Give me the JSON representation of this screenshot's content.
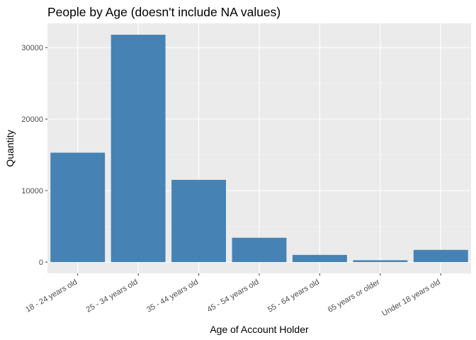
{
  "chart_data": {
    "type": "bar",
    "title": "People by Age (doesn't include NA values)",
    "xlabel": "Age of Account Holder",
    "ylabel": "Quantity",
    "categories": [
      "18 - 24 years old",
      "25 - 34 years old",
      "35 - 44 years old",
      "45 - 54 years old",
      "55 - 64 years old",
      "65 years or older",
      "Under 18 years old"
    ],
    "values": [
      15300,
      31800,
      11500,
      3400,
      1000,
      250,
      1700
    ],
    "ylim": [
      -1590,
      33390
    ],
    "yticks": [
      0,
      10000,
      20000,
      30000
    ],
    "ytick_labels": [
      "0",
      "10000",
      "20000",
      "30000"
    ],
    "grid": true,
    "colors": {
      "bar": "#4682b4",
      "panel": "#ebebeb",
      "grid_major": "#ffffff",
      "grid_minor": "#f4f4f4"
    }
  }
}
